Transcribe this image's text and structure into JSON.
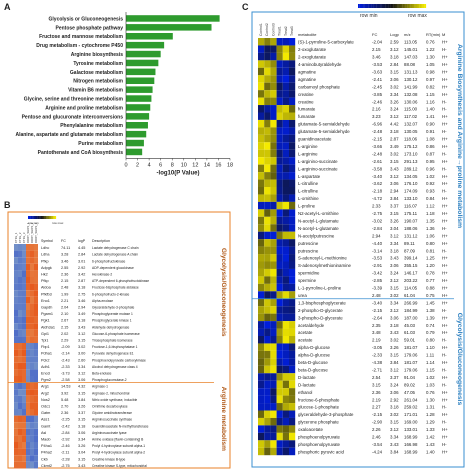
{
  "panelA": {
    "letter": "A",
    "chart_data": {
      "type": "bar",
      "orientation": "horizontal",
      "categories": [
        "Glycolysis or Gluconeogenesis",
        "Pentose phosphate pathway",
        "Fructose and mannose metabolism",
        "Drug metabolism - cytochrome P450",
        "Arginine biosynthesis",
        "Tyrosine metabolism",
        "Galactose metabolism",
        "Nitrogen metabolism",
        "Vitamin B6 metabolism",
        "Glycine, serine and threonine metabolism",
        "Arginine and proline metabolism",
        "Pentose and glucuronate interconversions",
        "Phenylalanine metabolism",
        "Alanine, aspartate and glutamate metabolism",
        "Purine metabolism",
        "Pantothenate and CoA biosynthesis"
      ],
      "values": [
        16.2,
        14.8,
        8.1,
        6.6,
        6.0,
        5.6,
        5.1,
        4.9,
        4.6,
        4.4,
        4.2,
        4.0,
        3.8,
        3.5,
        3.1,
        2.8
      ],
      "xlabel": "-log10(P Value)",
      "xlim": [
        0,
        18
      ],
      "ticks": [
        "0",
        "2",
        "4",
        "6",
        "8",
        "10",
        "12",
        "14",
        "16",
        "18"
      ],
      "bar_color": "#2e9b2e"
    }
  },
  "panelB": {
    "letter": "B",
    "legend": {
      "low": "row min",
      "high": "row max"
    },
    "columns": [
      "CTRL_1",
      "CTRL_2",
      "CTRL_3",
      "RORT_SHRS_1",
      "RORT_SHRS_2",
      "RORT_SHRS_3"
    ],
    "headers": {
      "symbol": "Symbol",
      "fc": "FC",
      "logp": "logP",
      "desc": "Description"
    },
    "group1_label": "Glycolysis/Gluconeogenesis",
    "group2_label": "Arginine metabolism",
    "rows": [
      {
        "sym": "Ldhc",
        "fc": "74.11",
        "lp": "4.45",
        "desc": "Lactate dehydrogenase C chain"
      },
      {
        "sym": "Ldha",
        "fc": "3.28",
        "lp": "2.84",
        "desc": "Lactate dehydrogenase A chain"
      },
      {
        "sym": "Pfkp",
        "fc": "3.46",
        "lp": "3.01",
        "desc": "6-phosphofructokinase"
      },
      {
        "sym": "Adpgk",
        "fc": "2.55",
        "lp": "2.92",
        "desc": "ADP-dependent glucokinase"
      },
      {
        "sym": "Hk2",
        "fc": "2.36",
        "lp": "3.42",
        "desc": "Hexokinase-2"
      },
      {
        "sym": "Pfkp",
        "fc": "2.15",
        "lp": "2.87",
        "desc": "ATP-dependent 6-phosphofructokinase"
      },
      {
        "sym": "Aldoa",
        "fc": "2.48",
        "lp": "3.18",
        "desc": "Fructose-bisphosphate aldolase"
      },
      {
        "sym": "Pfkfb3",
        "fc": "1.99",
        "lp": "2.75",
        "desc": "6-phosphofructo-2-kinase"
      },
      {
        "sym": "Eno1",
        "fc": "2.21",
        "lp": "3.46",
        "desc": "Alpha-enolase"
      },
      {
        "sym": "Gapdh",
        "fc": "2.04",
        "lp": "2.94",
        "desc": "Glyceraldehyde-3-phosphate"
      },
      {
        "sym": "Pgam1",
        "fc": "2.10",
        "lp": "3.49",
        "desc": "Phosphoglycerate mutase 1"
      },
      {
        "sym": "Pgk1",
        "fc": "2.67",
        "lp": "3.18",
        "desc": "Phosphoglycerate kinase 1"
      },
      {
        "sym": "Aldh3a1",
        "fc": "2.15",
        "lp": "3.43",
        "desc": "Aldehyde dehydrogenase"
      },
      {
        "sym": "Gpi1",
        "fc": "2.02",
        "lp": "3.12",
        "desc": "Glucose-6-phosphate isomerase"
      },
      {
        "sym": "Tpi1",
        "fc": "2.29",
        "lp": "3.15",
        "desc": "Triosephosphate isomerase"
      },
      {
        "sym": "Fbp1",
        "fc": "-2.09",
        "lp": "3.02",
        "desc": "Fructose-1,6-bisphosphatase 1"
      },
      {
        "sym": "Pdha1",
        "fc": "-2.14",
        "lp": "3.00",
        "desc": "Pyruvate dehydrogenase E1"
      },
      {
        "sym": "Pck2",
        "fc": "-2.43",
        "lp": "2.60",
        "desc": "Phosphoenolpyruvate carboxykinase"
      },
      {
        "sym": "Adh1",
        "fc": "-2.33",
        "lp": "3.34",
        "desc": "Alcohol dehydrogenase class 4"
      },
      {
        "sym": "Eno3",
        "fc": "-3.73",
        "lp": "3.12",
        "desc": "Beta-enolase"
      },
      {
        "sym": "Pgm2",
        "fc": "-2.58",
        "lp": "3.06",
        "desc": "Phosphoglucomutase-2"
      },
      {
        "sym": "Arg1",
        "fc": "14.53",
        "lp": "4.32",
        "desc": "Arginase-1"
      },
      {
        "sym": "Arg2",
        "fc": "3.92",
        "lp": "3.15",
        "desc": "Arginase-2, mitochondrial"
      },
      {
        "sym": "Nos2",
        "fc": "5.48",
        "lp": "3.84",
        "desc": "Nitric oxide synthase, inducible"
      },
      {
        "sym": "Odc1",
        "fc": "2.70",
        "lp": "3.26",
        "desc": "Ornithine decarboxylase"
      },
      {
        "sym": "Gatm",
        "fc": "2.36",
        "lp": "3.37",
        "desc": "Glycine amidinotransferase"
      },
      {
        "sym": "Ass1",
        "fc": "-2.25",
        "lp": "3.15",
        "desc": "Argininosuccinate synthase"
      },
      {
        "sym": "Gamt",
        "fc": "-2.42",
        "lp": "3.18",
        "desc": "Guanidinoacetate N-methyltransferase"
      },
      {
        "sym": "Asl",
        "fc": "-2.84",
        "lp": "3.06",
        "desc": "Argininosuccinate lyase"
      },
      {
        "sym": "Maob",
        "fc": "-2.92",
        "lp": "3.34",
        "desc": "Amine oxidase [flavin-containing] B"
      },
      {
        "sym": "P4ha1",
        "fc": "-2.46",
        "lp": "3.26",
        "desc": "Prolyl 4-hydroxylase subunit alpha-1"
      },
      {
        "sym": "P4ha2",
        "fc": "-2.11",
        "lp": "3.04",
        "desc": "Prolyl 4-hydroxylase subunit alpha-2"
      },
      {
        "sym": "Ckb",
        "fc": "-2.28",
        "lp": "3.15",
        "desc": "Creatine kinase B-type"
      },
      {
        "sym": "Ckmt2",
        "fc": "-2.75",
        "lp": "3.43",
        "desc": "Creatine kinase S-type, mitochondrial"
      }
    ]
  },
  "panelC": {
    "letter": "C",
    "legend": {
      "low": "row min",
      "high": "row max"
    },
    "columns": [
      "Control1",
      "Control2",
      "Control3",
      "Treat1",
      "Treat2",
      "Treat3"
    ],
    "headers": {
      "metabolite": "metabolite",
      "fc": "FC",
      "logp": "Logp",
      "mz": "m/z",
      "rt": "RT(min)",
      "ion": "M"
    },
    "group1_label": "Arginine Biosynthesis and Arginine→proline metabolism",
    "group2_label": "Glycolysis/Gluconeogenesis",
    "rows": [
      {
        "m": "(S)-1-pyrroline-5-carboxylate",
        "fc": "-2.04",
        "lp": "2.59",
        "mz": "113.05",
        "rt": "0.76",
        "ion": "H+"
      },
      {
        "m": "2-oxoglutarate",
        "fc": "2.15",
        "lp": "3.12",
        "mz": "145.01",
        "rt": "1.22",
        "ion": "H-"
      },
      {
        "m": "2-oxoglutarate",
        "fc": "3.46",
        "lp": "3.18",
        "mz": "147.03",
        "rt": "1.30",
        "ion": "H+"
      },
      {
        "m": "4-aminobutyraldehyde",
        "fc": "-3.53",
        "lp": "2.84",
        "mz": "88.08",
        "rt": "1.05",
        "ion": "H+"
      },
      {
        "m": "agmatine",
        "fc": "-3.63",
        "lp": "3.15",
        "mz": "131.13",
        "rt": "0.98",
        "ion": "H+"
      },
      {
        "m": "agmatine",
        "fc": "-2.41",
        "lp": "3.06",
        "mz": "130.12",
        "rt": "0.97",
        "ion": "H+"
      },
      {
        "m": "carbamoyl phosphate",
        "fc": "-2.45",
        "lp": "3.02",
        "mz": "141.99",
        "rt": "0.82",
        "ion": "H+"
      },
      {
        "m": "creatine",
        "fc": "-3.85",
        "lp": "3.34",
        "mz": "132.08",
        "rt": "1.15",
        "ion": "H+"
      },
      {
        "m": "creatine",
        "fc": "-2.46",
        "lp": "3.26",
        "mz": "130.06",
        "rt": "1.16",
        "ion": "H-"
      },
      {
        "m": "fumarate",
        "fc": "2.16",
        "lp": "3.24",
        "mz": "115.00",
        "rt": "1.40",
        "ion": "H-"
      },
      {
        "m": "fumarate",
        "fc": "3.23",
        "lp": "3.12",
        "mz": "117.02",
        "rt": "1.41",
        "ion": "H+"
      },
      {
        "m": "glutamate-5-semialdehyde",
        "fc": "-6.96",
        "lp": "4.42",
        "mz": "132.07",
        "rt": "0.90",
        "ion": "H+"
      },
      {
        "m": "glutamate-5-semialdehyde",
        "fc": "-2.48",
        "lp": "3.18",
        "mz": "130.05",
        "rt": "0.91",
        "ion": "H-"
      },
      {
        "m": "guanidinoacetate",
        "fc": "-2.15",
        "lp": "2.87",
        "mz": "118.06",
        "rt": "1.08",
        "ion": "H+"
      },
      {
        "m": "L-arginine",
        "fc": "-3.66",
        "lp": "3.49",
        "mz": "175.12",
        "rt": "0.86",
        "ion": "H+"
      },
      {
        "m": "L-arginine",
        "fc": "-2.48",
        "lp": "3.02",
        "mz": "173.10",
        "rt": "0.87",
        "ion": "H-"
      },
      {
        "m": "L-arginino-succinate",
        "fc": "-2.61",
        "lp": "3.15",
        "mz": "291.13",
        "rt": "0.95",
        "ion": "H+"
      },
      {
        "m": "L-arginino-succinate",
        "fc": "-3.58",
        "lp": "3.43",
        "mz": "289.12",
        "rt": "0.96",
        "ion": "H-"
      },
      {
        "m": "L-aspartate",
        "fc": "-3.40",
        "lp": "3.12",
        "mz": "134.05",
        "rt": "1.02",
        "ion": "H+"
      },
      {
        "m": "L-citrulline",
        "fc": "-3.62",
        "lp": "3.06",
        "mz": "176.10",
        "rt": "0.92",
        "ion": "H+"
      },
      {
        "m": "L-citrulline",
        "fc": "-2.18",
        "lp": "2.94",
        "mz": "174.09",
        "rt": "0.93",
        "ion": "H-"
      },
      {
        "m": "L-ornithine",
        "fc": "-4.72",
        "lp": "3.84",
        "mz": "133.10",
        "rt": "0.84",
        "ion": "H+"
      },
      {
        "m": "L-proline",
        "fc": "2.33",
        "lp": "3.37",
        "mz": "116.07",
        "rt": "1.12",
        "ion": "H+"
      },
      {
        "m": "N2-acetyl-L-ornithine",
        "fc": "-2.75",
        "lp": "3.15",
        "mz": "175.11",
        "rt": "1.18",
        "ion": "H+"
      },
      {
        "m": "N-acetyl-L-glutamate",
        "fc": "-3.02",
        "lp": "3.26",
        "mz": "190.07",
        "rt": "1.35",
        "ion": "H+"
      },
      {
        "m": "N-acetyl-L-glutamate",
        "fc": "-2.84",
        "lp": "3.04",
        "mz": "188.06",
        "rt": "1.36",
        "ion": "H-"
      },
      {
        "m": "N-acetylputrescine",
        "fc": "2.94",
        "lp": "3.12",
        "mz": "131.12",
        "rt": "1.06",
        "ion": "H+"
      },
      {
        "m": "putrescine",
        "fc": "-4.40",
        "lp": "3.34",
        "mz": "89.11",
        "rt": "0.80",
        "ion": "H+"
      },
      {
        "m": "putrescine",
        "fc": "-3.14",
        "lp": "3.18",
        "mz": "87.09",
        "rt": "0.81",
        "ion": "H-"
      },
      {
        "m": "S-adenosyl-L-methionine",
        "fc": "-3.53",
        "lp": "3.43",
        "mz": "399.14",
        "rt": "1.25",
        "ion": "H+"
      },
      {
        "m": "S-adenosylmethioninamine",
        "fc": "-2.91",
        "lp": "3.06",
        "mz": "355.15",
        "rt": "1.20",
        "ion": "H+"
      },
      {
        "m": "spermidine",
        "fc": "-3.42",
        "lp": "3.24",
        "mz": "146.17",
        "rt": "0.78",
        "ion": "H+"
      },
      {
        "m": "spermine",
        "fc": "-2.85",
        "lp": "3.12",
        "mz": "203.22",
        "rt": "0.77",
        "ion": "H+"
      },
      {
        "m": "L-1-pyrroline-L-proline",
        "fc": "-3.39",
        "lp": "3.15",
        "mz": "114.05",
        "rt": "0.88",
        "ion": "H+"
      },
      {
        "m": "urea",
        "fc": "2.48",
        "lp": "3.02",
        "mz": "61.04",
        "rt": "0.75",
        "ion": "H+"
      },
      {
        "m": "1,3-bisphosphoglycerate",
        "fc": "-3.40",
        "lp": "3.34",
        "mz": "266.99",
        "rt": "1.45",
        "ion": "H+"
      },
      {
        "m": "2-phospho-D-glycerate",
        "fc": "-2.15",
        "lp": "3.12",
        "mz": "184.99",
        "rt": "1.38",
        "ion": "H-"
      },
      {
        "m": "3-phospho-D-glycerate",
        "fc": "-2.64",
        "lp": "3.06",
        "mz": "187.00",
        "rt": "1.39",
        "ion": "H+"
      },
      {
        "m": "acetaldehyde",
        "fc": "2.35",
        "lp": "3.18",
        "mz": "45.03",
        "rt": "0.74",
        "ion": "H+"
      },
      {
        "m": "acetate",
        "fc": "3.48",
        "lp": "3.43",
        "mz": "61.03",
        "rt": "0.79",
        "ion": "H+"
      },
      {
        "m": "acetate",
        "fc": "2.19",
        "lp": "3.02",
        "mz": "59.01",
        "rt": "0.80",
        "ion": "H-"
      },
      {
        "m": "alpha-D-glucose",
        "fc": "-3.05",
        "lp": "3.26",
        "mz": "181.07",
        "rt": "1.10",
        "ion": "H+"
      },
      {
        "m": "alpha-D-glucose",
        "fc": "-2.33",
        "lp": "3.15",
        "mz": "179.06",
        "rt": "1.11",
        "ion": "H-"
      },
      {
        "m": "beta-D-glucose",
        "fc": "-4.38",
        "lp": "3.84",
        "mz": "181.07",
        "rt": "1.14",
        "ion": "H+"
      },
      {
        "m": "beta-D-glucose",
        "fc": "-2.71",
        "lp": "3.12",
        "mz": "179.06",
        "rt": "1.15",
        "ion": "H-"
      },
      {
        "m": "D-lactate",
        "fc": "2.54",
        "lp": "3.37",
        "mz": "91.04",
        "rt": "1.02",
        "ion": "H+"
      },
      {
        "m": "D-lactate",
        "fc": "3.15",
        "lp": "3.24",
        "mz": "89.02",
        "rt": "1.03",
        "ion": "H-"
      },
      {
        "m": "ethanol",
        "fc": "2.36",
        "lp": "3.06",
        "mz": "47.05",
        "rt": "0.76",
        "ion": "H+"
      },
      {
        "m": "fructose-6-phosphate",
        "fc": "2.19",
        "lp": "2.92",
        "mz": "261.04",
        "rt": "1.30",
        "ion": "H+"
      },
      {
        "m": "glucose-1-phosphate",
        "fc": "2.27",
        "lp": "3.18",
        "mz": "259.02",
        "rt": "1.31",
        "ion": "H-"
      },
      {
        "m": "glyceraldehyde-3-phosphate",
        "fc": "-2.15",
        "lp": "3.02",
        "mz": "171.01",
        "rt": "1.28",
        "ion": "H+"
      },
      {
        "m": "glycerone phosphate",
        "fc": "-2.90",
        "lp": "3.15",
        "mz": "169.00",
        "rt": "1.29",
        "ion": "H-"
      },
      {
        "m": "oxaloacetate",
        "fc": "2.26",
        "lp": "3.12",
        "mz": "133.01",
        "rt": "1.33",
        "ion": "H+"
      },
      {
        "m": "phosphoenolpyruvate",
        "fc": "2.46",
        "lp": "3.34",
        "mz": "168.99",
        "rt": "1.42",
        "ion": "H+"
      },
      {
        "m": "phosphoenolpyruvate",
        "fc": "-3.54",
        "lp": "3.43",
        "mz": "166.98",
        "rt": "1.43",
        "ion": "H-"
      },
      {
        "m": "phosphoric pyruvic acid",
        "fc": "-4.24",
        "lp": "3.84",
        "mz": "168.99",
        "rt": "1.40",
        "ion": "H+"
      }
    ]
  }
}
